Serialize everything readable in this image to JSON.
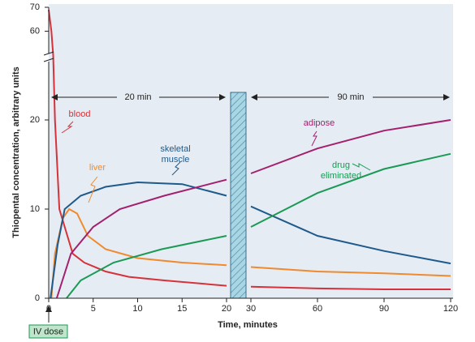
{
  "chart_data": {
    "type": "line",
    "x_label": "Time, minutes",
    "y_label": "Thiopental concentration, arbitrary units",
    "x_segments": [
      {
        "xlim": [
          0,
          20
        ],
        "xticks": [
          0,
          5,
          10,
          15,
          20
        ]
      },
      {
        "xlim": [
          30,
          120
        ],
        "xticks": [
          30,
          60,
          90,
          120
        ]
      }
    ],
    "y_segments": [
      {
        "ylim": [
          0,
          27
        ],
        "yticks": [
          0,
          10,
          20
        ]
      },
      {
        "ylim": [
          49,
          70
        ],
        "yticks": [
          60,
          70
        ]
      }
    ],
    "intervals": [
      "20 min",
      "90 min"
    ],
    "dose_label": "IV dose",
    "series": [
      {
        "name": "blood",
        "color": "#d6323a",
        "x": [
          0,
          0.3,
          0.5,
          0.7,
          1.2,
          2.7,
          4,
          6.4,
          9,
          13,
          20,
          30,
          60,
          90,
          120
        ],
        "values": [
          69,
          60,
          50,
          20,
          10,
          5,
          4,
          3,
          2.4,
          2,
          1.4,
          1.3,
          1.1,
          1.0,
          1.0
        ]
      },
      {
        "name": "liver",
        "color": "#ef8a2e",
        "x": [
          0.3,
          0.7,
          1.6,
          2.3,
          3.2,
          4.4,
          6.4,
          10,
          15,
          20,
          30,
          60,
          90,
          120
        ],
        "values": [
          0,
          5,
          9,
          10,
          9.5,
          7,
          5.5,
          4.5,
          4,
          3.7,
          3.5,
          3.0,
          2.8,
          2.5
        ]
      },
      {
        "name": "skeletal muscle",
        "color": "#1e5a8c",
        "x": [
          0.2,
          1,
          1.8,
          3.6,
          6.4,
          10,
          15,
          20,
          30,
          60,
          90,
          120
        ],
        "values": [
          0,
          6,
          10,
          11.5,
          12.5,
          13,
          12.8,
          11.5,
          10.3,
          7,
          5.3,
          3.9
        ]
      },
      {
        "name": "adipose",
        "color": "#a3206e",
        "x": [
          0.9,
          2.5,
          5,
          8,
          13,
          20,
          30,
          60,
          90,
          120
        ],
        "values": [
          0,
          5,
          8,
          10,
          11.5,
          13.3,
          14,
          16.8,
          18.8,
          20
        ]
      },
      {
        "name": "drug eliminated",
        "color": "#1a9a55",
        "x": [
          2,
          3.6,
          7.3,
          12.7,
          20,
          30,
          60,
          90,
          120
        ],
        "values": [
          0,
          2,
          4,
          5.5,
          7,
          8,
          11.8,
          14.5,
          16.2
        ]
      }
    ]
  }
}
